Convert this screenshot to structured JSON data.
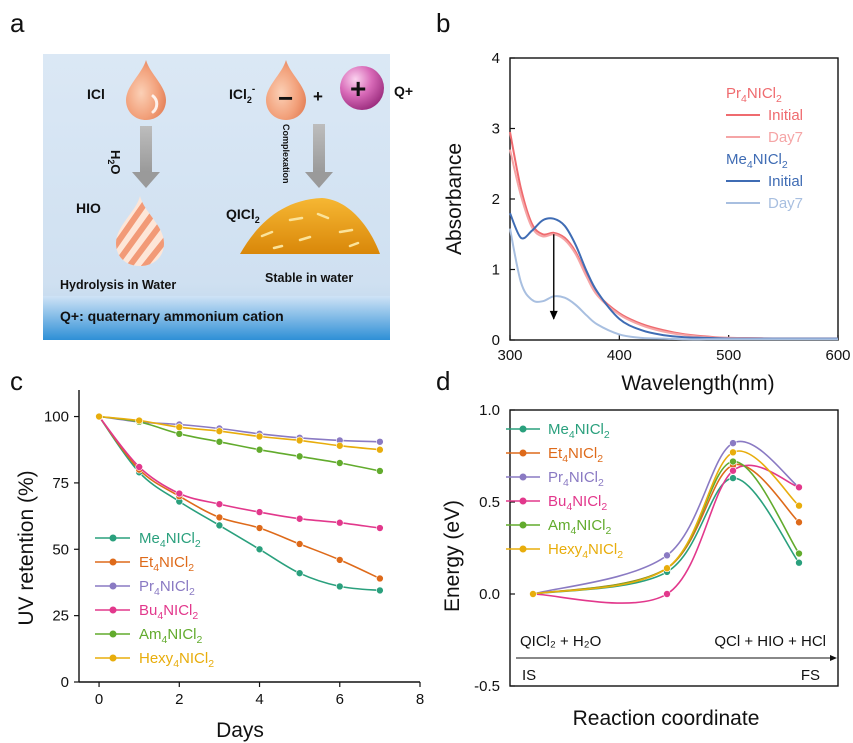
{
  "panels": {
    "a": {
      "label": "a",
      "icl": "ICl",
      "h2o": "H",
      "h2o_sub": "2",
      "h2o_end": "O",
      "hio": "HIO",
      "hydrolysis": "Hydrolysis in Water",
      "icl2_base": "ICl",
      "icl2_sub": "2",
      "icl2_sup": "-",
      "plus": "+",
      "q_plus": "Q+",
      "complexation": "Complexation",
      "qicl2_base": "QICl",
      "qicl2_sub": "2",
      "stable": "Stable in water",
      "footer": "Q+: quaternary ammonium cation",
      "minus_sign": "−",
      "plus_sign": "+"
    },
    "b": {
      "label": "b"
    },
    "c": {
      "label": "c"
    },
    "d": {
      "label": "d",
      "start_label": "QICl₂ + H₂O",
      "end_label": "QCl + HIO + HCl",
      "is_label": "IS",
      "fs_label": "FS"
    }
  },
  "colors": {
    "pr_initial": "#ef6b6f",
    "pr_day7": "#f5a5a6",
    "me_initial": "#3f6cb4",
    "me_day7": "#a8bfe0",
    "me4": "#2aa07d",
    "et4": "#de6a1a",
    "pr4": "#8a7ac3",
    "bu4": "#e2388c",
    "am4": "#62ab2d",
    "hexy4": "#e8ad0c"
  },
  "chart_data": [
    {
      "panel": "b",
      "type": "line",
      "xlabel": "Wavelength(nm)",
      "ylabel": "Absorbance",
      "xlim": [
        300,
        600
      ],
      "ylim": [
        0,
        4
      ],
      "xticks": [
        300,
        400,
        500,
        600
      ],
      "yticks": [
        0,
        1,
        2,
        3,
        4
      ],
      "legend_groups": [
        {
          "title_base": "Pr",
          "title_sub": "4",
          "title_mid": "NICl",
          "title_sub2": "2",
          "entries": [
            "Initial",
            "Day7"
          ]
        },
        {
          "title_base": "Me",
          "title_sub": "4",
          "title_mid": "NICl",
          "title_sub2": "2",
          "entries": [
            "Initial",
            "Day7"
          ]
        }
      ],
      "series": [
        {
          "group": "Pr4NICl2",
          "name": "Initial",
          "color_key": "pr_initial",
          "x": [
            300,
            310,
            320,
            330,
            340,
            350,
            360,
            370,
            380,
            400,
            420,
            440,
            460,
            480,
            500,
            550,
            600
          ],
          "y": [
            2.95,
            2.15,
            1.65,
            1.5,
            1.52,
            1.45,
            1.25,
            0.92,
            0.65,
            0.38,
            0.23,
            0.14,
            0.08,
            0.05,
            0.03,
            0.02,
            0.02
          ]
        },
        {
          "group": "Pr4NICl2",
          "name": "Day7",
          "color_key": "pr_day7",
          "x": [
            300,
            310,
            320,
            330,
            340,
            350,
            360,
            370,
            380,
            400,
            420,
            440,
            460,
            480,
            500,
            550,
            600
          ],
          "y": [
            2.7,
            2.05,
            1.6,
            1.47,
            1.5,
            1.42,
            1.22,
            0.9,
            0.63,
            0.36,
            0.21,
            0.12,
            0.07,
            0.04,
            0.03,
            0.02,
            0.02
          ]
        },
        {
          "group": "Me4NICl2",
          "name": "Initial",
          "color_key": "me_initial",
          "x": [
            300,
            310,
            320,
            330,
            340,
            350,
            360,
            370,
            380,
            400,
            420,
            440,
            460,
            480,
            500,
            550,
            600
          ],
          "y": [
            1.8,
            1.45,
            1.55,
            1.7,
            1.72,
            1.62,
            1.35,
            0.98,
            0.68,
            0.3,
            0.14,
            0.07,
            0.04,
            0.03,
            0.02,
            0.02,
            0.02
          ]
        },
        {
          "group": "Me4NICl2",
          "name": "Day7",
          "color_key": "me_day7",
          "x": [
            300,
            310,
            320,
            330,
            340,
            350,
            360,
            370,
            380,
            400,
            420,
            440,
            460,
            480,
            500,
            550,
            600
          ],
          "y": [
            1.58,
            0.82,
            0.57,
            0.55,
            0.62,
            0.6,
            0.5,
            0.35,
            0.22,
            0.08,
            0.03,
            0.02,
            0.01,
            0.01,
            0.01,
            0.01,
            0.01
          ]
        }
      ],
      "annotation": "arrow from 1.5 down to 0.3 at 340 nm"
    },
    {
      "panel": "c",
      "type": "line",
      "xlabel": "Days",
      "ylabel": "UV retention (%)",
      "xlim": [
        -0.5,
        8
      ],
      "ylim": [
        0,
        110
      ],
      "xticks": [
        0,
        2,
        4,
        6,
        8
      ],
      "yticks": [
        0,
        25,
        50,
        75,
        100
      ],
      "x": [
        0,
        1,
        2,
        3,
        4,
        5,
        6,
        7
      ],
      "series": [
        {
          "base": "Me",
          "sub": "4",
          "mid": "NICl",
          "sub2": "2",
          "color_key": "me4",
          "values": [
            100,
            79,
            68,
            59,
            50,
            41,
            36,
            34.5
          ]
        },
        {
          "base": "Et",
          "sub": "4",
          "mid": "NICl",
          "sub2": "2",
          "color_key": "et4",
          "values": [
            100,
            80,
            70,
            62,
            58,
            52,
            46,
            39
          ]
        },
        {
          "base": "Pr",
          "sub": "4",
          "mid": "NICl",
          "sub2": "2",
          "color_key": "pr4",
          "values": [
            100,
            98,
            97,
            95.5,
            93.5,
            92,
            91,
            90.5
          ]
        },
        {
          "base": "Bu",
          "sub": "4",
          "mid": "NICl",
          "sub2": "2",
          "color_key": "bu4",
          "values": [
            100,
            81,
            71,
            67,
            64,
            61.5,
            60,
            58
          ]
        },
        {
          "base": "Am",
          "sub": "4",
          "mid": "NICl",
          "sub2": "2",
          "color_key": "am4",
          "values": [
            100,
            98,
            93.5,
            90.5,
            87.5,
            85,
            82.5,
            79.5
          ]
        },
        {
          "base": "Hexy",
          "sub": "4",
          "mid": "NICl",
          "sub2": "2",
          "color_key": "hexy4",
          "values": [
            100,
            98.5,
            96,
            94.5,
            92.5,
            91,
            89,
            87.5
          ]
        }
      ]
    },
    {
      "panel": "d",
      "type": "line",
      "xlabel": "Reaction coordinate",
      "ylabel": "Energy (eV)",
      "ylim": [
        -0.5,
        1.0
      ],
      "yticks": [
        -0.5,
        0.0,
        0.5,
        1.0
      ],
      "ytick_labels": [
        "-0.5",
        "0.0",
        "0.5",
        "1.0"
      ],
      "x": [
        0,
        1,
        2,
        3
      ],
      "series": [
        {
          "base": "Me",
          "sub": "4",
          "mid": "NICl",
          "sub2": "2",
          "color_key": "me4",
          "values": [
            0.0,
            0.12,
            0.63,
            0.17
          ]
        },
        {
          "base": "Et",
          "sub": "4",
          "mid": "NICl",
          "sub2": "2",
          "color_key": "et4",
          "values": [
            0.0,
            0.14,
            0.7,
            0.39
          ]
        },
        {
          "base": "Pr",
          "sub": "4",
          "mid": "NICl",
          "sub2": "2",
          "color_key": "pr4",
          "values": [
            0.0,
            0.21,
            0.82,
            0.58
          ]
        },
        {
          "base": "Bu",
          "sub": "4",
          "mid": "NICl",
          "sub2": "2",
          "color_key": "bu4",
          "values": [
            0.0,
            0.0,
            0.67,
            0.58
          ]
        },
        {
          "base": "Am",
          "sub": "4",
          "mid": "NICl",
          "sub2": "2",
          "color_key": "am4",
          "values": [
            0.0,
            0.14,
            0.72,
            0.22
          ]
        },
        {
          "base": "Hexy",
          "sub": "4",
          "mid": "NICl",
          "sub2": "2",
          "color_key": "hexy4",
          "values": [
            0.0,
            0.14,
            0.77,
            0.48
          ]
        }
      ]
    }
  ]
}
